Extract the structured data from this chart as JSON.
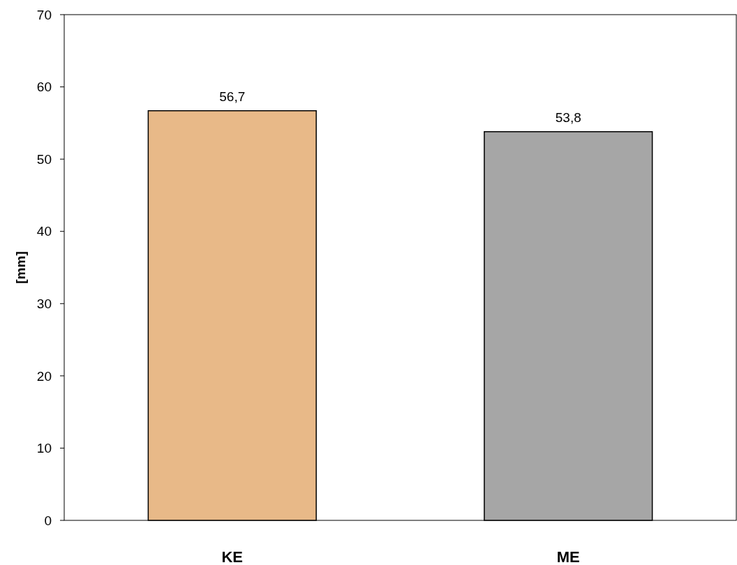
{
  "chart_data": {
    "type": "bar",
    "ylabel": "[mm]",
    "categories": [
      "KE",
      "ME"
    ],
    "values": [
      56.7,
      53.8
    ],
    "colors": [
      "#e8b988",
      "#a6a6a6"
    ],
    "value_labels": [
      "56,7",
      "53,8"
    ],
    "ylim": [
      0,
      70
    ],
    "yticks": [
      0,
      10,
      20,
      30,
      40,
      50,
      60,
      70
    ],
    "grid": false
  }
}
